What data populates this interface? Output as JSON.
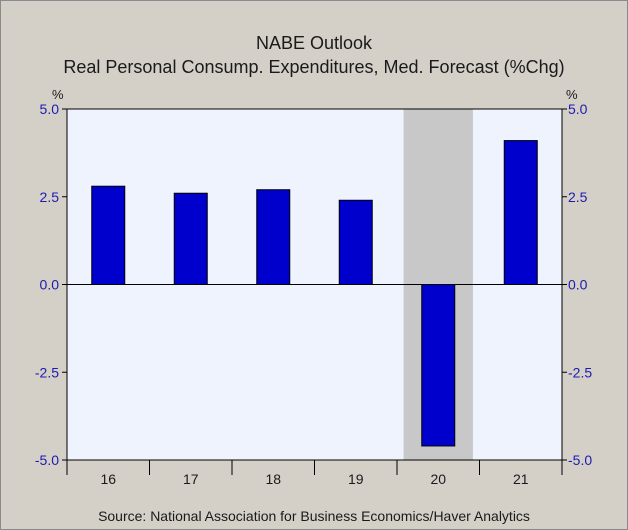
{
  "title_line1": "NABE Outlook",
  "title_line2": "Real Personal Consump. Expenditures, Med. Forecast (%Chg)",
  "unit_left": "%",
  "unit_right": "%",
  "source": "Source:  National Association for Business Economics/Haver Analytics",
  "colors": {
    "bar": "#0000cc",
    "plot_background": "#eef3fd",
    "shade": "#c8c8c8",
    "tick_text": "#1c1cb0"
  },
  "chart_data": {
    "type": "bar",
    "categories": [
      "16",
      "17",
      "18",
      "19",
      "20",
      "21"
    ],
    "values": [
      2.8,
      2.6,
      2.7,
      2.4,
      -4.6,
      4.1
    ],
    "ylim": [
      -5.0,
      5.0
    ],
    "yticks": [
      5.0,
      2.5,
      0.0,
      -2.5,
      -5.0
    ],
    "ytick_labels": [
      "5.0",
      "2.5",
      "0.0",
      "-2.5",
      "-5.0"
    ],
    "shaded_category": "20",
    "grid": false,
    "legend": "none"
  }
}
